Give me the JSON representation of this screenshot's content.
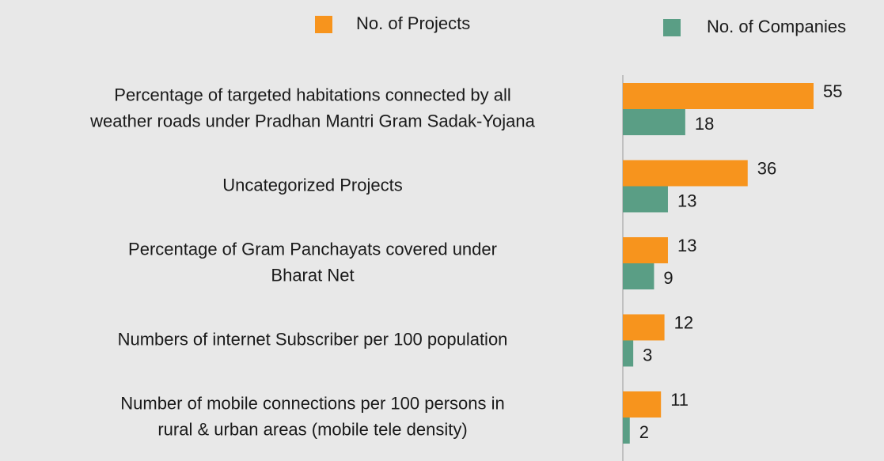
{
  "chart_data": {
    "type": "hbar",
    "categories": [
      "Percentage of targeted habitations connected by all\nweather roads under Pradhan Mantri Gram Sadak-Yojana",
      "Uncategorized Projects",
      "Percentage of Gram Panchayats covered under\nBharat Net",
      "Numbers of internet Subscriber per 100 population",
      "Number of mobile connections per 100 persons in\nrural & urban areas (mobile tele density)"
    ],
    "series": [
      {
        "name": "No. of Projects",
        "color": "#f7941d",
        "values": [
          55,
          36,
          13,
          12,
          11
        ]
      },
      {
        "name": "No. of Companies",
        "color": "#5a9e85",
        "values": [
          18,
          13,
          9,
          3,
          2
        ]
      }
    ]
  }
}
